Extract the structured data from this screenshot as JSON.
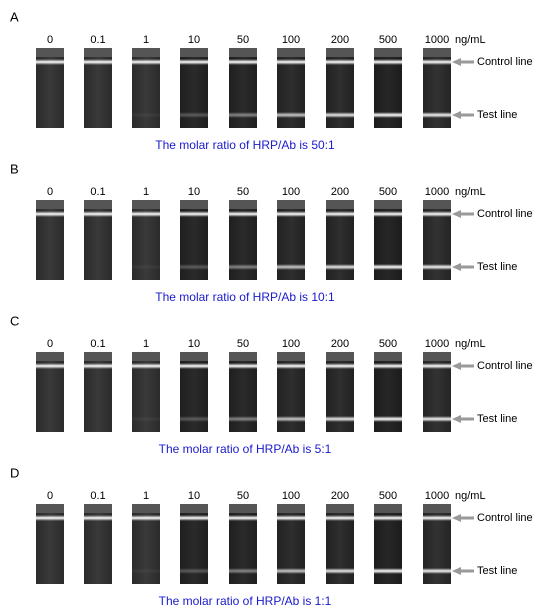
{
  "panels": [
    {
      "label": "A",
      "concentrations": [
        "0",
        "0.1",
        "1",
        "10",
        "50",
        "100",
        "200",
        "500",
        "1000"
      ],
      "unit": "ng/mL",
      "control_label": "Control line",
      "test_label": "Test line",
      "caption": "The molar ratio of HRP/Ab is  50:1"
    },
    {
      "label": "B",
      "concentrations": [
        "0",
        "0.1",
        "1",
        "10",
        "50",
        "100",
        "200",
        "500",
        "1000"
      ],
      "unit": "ng/mL",
      "control_label": "Control line",
      "test_label": "Test line",
      "caption": "The molar ratio of HRP/Ab is 10:1"
    },
    {
      "label": "C",
      "concentrations": [
        "0",
        "0.1",
        "1",
        "10",
        "50",
        "100",
        "200",
        "500",
        "1000"
      ],
      "unit": "ng/mL",
      "control_label": "Control line",
      "test_label": "Test line",
      "caption": "The molar ratio of HRP/Ab is 5:1"
    },
    {
      "label": "D",
      "concentrations": [
        "0",
        "0.1",
        "1",
        "10",
        "50",
        "100",
        "200",
        "500",
        "1000"
      ],
      "unit": "ng/mL",
      "control_label": "Control line",
      "test_label": "Test line",
      "caption": "The molar ratio of HRP/Ab is  1:1"
    }
  ]
}
